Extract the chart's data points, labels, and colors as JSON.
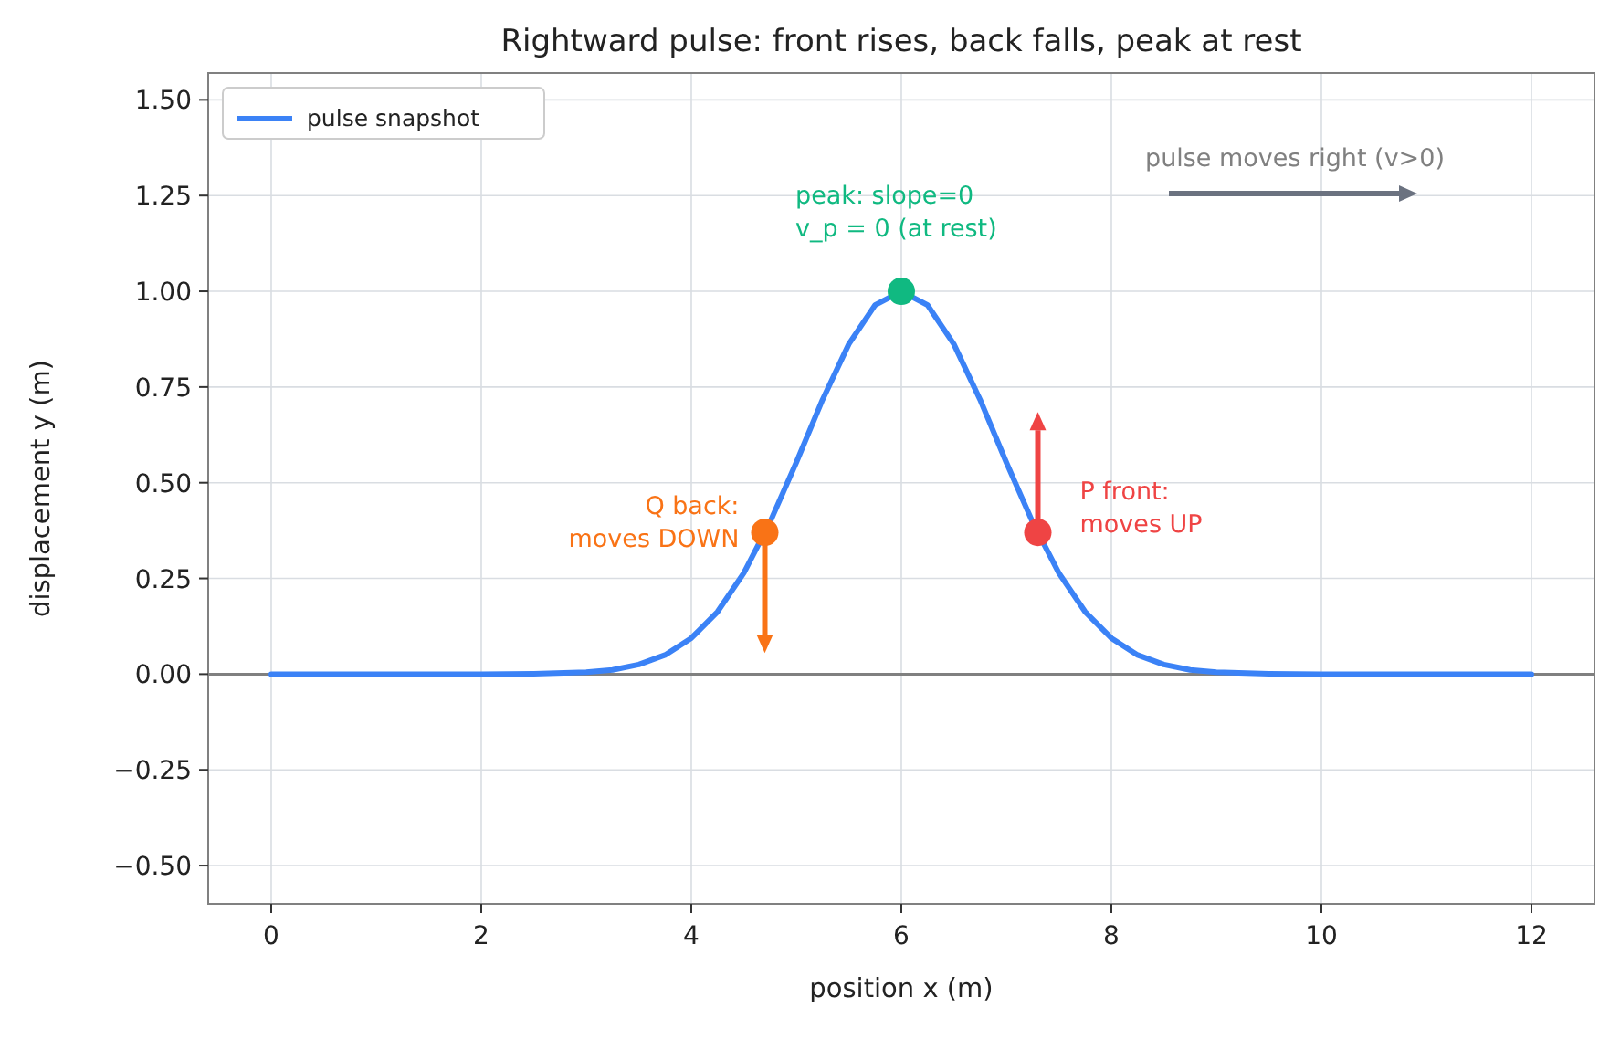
{
  "chart_data": {
    "type": "line",
    "title": "Rightward pulse: front rises, back falls, peak at rest",
    "xlabel": "position x (m)",
    "ylabel": "displacement y (m)",
    "xlim": [
      -0.6,
      12.6
    ],
    "ylim": [
      -0.6,
      1.57
    ],
    "xticks": [
      0,
      2,
      4,
      6,
      8,
      10,
      12
    ],
    "yticks": [
      {
        "value": -0.5,
        "label": "−0.50"
      },
      {
        "value": -0.25,
        "label": "−0.25"
      },
      {
        "value": 0,
        "label": "0.00"
      },
      {
        "value": 0.25,
        "label": "0.25"
      },
      {
        "value": 0.5,
        "label": "0.50"
      },
      {
        "value": 0.75,
        "label": "0.75"
      },
      {
        "value": 1,
        "label": "1.00"
      },
      {
        "value": 1.25,
        "label": "1.25"
      },
      {
        "value": 1.5,
        "label": "1.50"
      }
    ],
    "grid": true,
    "legend": "top left",
    "ref_lines": [
      {
        "axis": "y",
        "value": 0,
        "color": "#808080"
      }
    ],
    "series": [
      {
        "name": "pulse snapshot",
        "type": "line",
        "color": "#3b82f6",
        "x": [
          0,
          1,
          2,
          2.5,
          3,
          3.25,
          3.5,
          3.75,
          4,
          4.25,
          4.5,
          4.75,
          5,
          5.25,
          5.5,
          5.75,
          6,
          6.25,
          6.5,
          6.75,
          7,
          7.25,
          7.5,
          7.75,
          8,
          8.25,
          8.5,
          8.75,
          9,
          9.5,
          10,
          11,
          12
        ],
        "values": [
          0,
          0,
          0,
          0.001,
          0.005,
          0.011,
          0.025,
          0.05,
          0.094,
          0.163,
          0.264,
          0.397,
          0.553,
          0.717,
          0.862,
          0.964,
          1,
          0.964,
          0.862,
          0.717,
          0.553,
          0.397,
          0.264,
          0.163,
          0.094,
          0.05,
          0.025,
          0.011,
          0.005,
          0.001,
          0,
          0,
          0
        ]
      },
      {
        "type": "scatter",
        "color": "#10b981",
        "x": [
          6
        ],
        "values": [
          1
        ]
      },
      {
        "type": "scatter",
        "color": "#f97316",
        "x": [
          4.7
        ],
        "values": [
          0.37
        ]
      },
      {
        "type": "scatter",
        "color": "#ef4444",
        "x": [
          7.3
        ],
        "values": [
          0.37
        ]
      }
    ],
    "annotations": [
      "peak: slope=0\nv_p = 0 (at rest)",
      "Q back:\nmoves DOWN",
      "P front:\nmoves UP",
      "pulse moves right (v>0)"
    ]
  }
}
